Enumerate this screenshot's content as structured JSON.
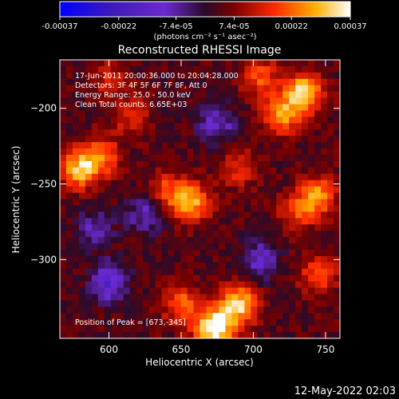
{
  "chart_data": {
    "type": "heatmap",
    "title": "Reconstructed RHESSI Image",
    "xlabel": "Heliocentric X (arcsec)",
    "ylabel": "Heliocentric Y (arcsec)",
    "xlim": [
      566,
      760
    ],
    "ylim": [
      -352,
      -168
    ],
    "x_ticks": [
      "600",
      "650",
      "700",
      "750"
    ],
    "y_ticks": [
      "-200",
      "-250",
      "-300"
    ],
    "x_tick_values": [
      600,
      650,
      700,
      750
    ],
    "y_tick_values": [
      -200,
      -250,
      -300
    ],
    "colorbar": {
      "min": -0.00037,
      "max": 0.00037,
      "ticks": [
        "-0.00037",
        "-0.00022",
        "-7.4e-05",
        "7.4e-05",
        "0.00022",
        "0.00037"
      ],
      "tick_values": [
        -0.00037,
        -0.00022,
        -7.4e-05,
        7.4e-05,
        0.00022,
        0.00037
      ],
      "unit_label": "(photons cm⁻² s⁻¹ asec⁻²)"
    },
    "annotations": [
      "17-Jun-2011 20:00:36.000 to 20:04:28.000",
      "Detectors: 3F 4F 5F 6F 7F 8F, Att 0",
      "Energy Range: 25.0 - 50.0 keV",
      "Clean     Total counts: 6.65E+03"
    ],
    "peak_label": "Position of Peak = [673,-345]",
    "peak": [
      673,
      -345
    ],
    "hotspots": [
      {
        "x": 673,
        "y": -345,
        "value": 0.00037
      },
      {
        "x": 690,
        "y": -330,
        "value": 0.00028
      },
      {
        "x": 650,
        "y": -330,
        "value": 0.00018
      },
      {
        "x": 735,
        "y": -190,
        "value": 0.0003
      },
      {
        "x": 720,
        "y": -205,
        "value": 0.00022
      },
      {
        "x": 705,
        "y": -180,
        "value": 0.00016
      },
      {
        "x": 580,
        "y": -240,
        "value": 0.00026
      },
      {
        "x": 595,
        "y": -232,
        "value": 0.00018
      },
      {
        "x": 657,
        "y": -262,
        "value": 0.00024
      },
      {
        "x": 640,
        "y": -255,
        "value": 0.00015
      },
      {
        "x": 745,
        "y": -258,
        "value": 0.00022
      },
      {
        "x": 730,
        "y": -268,
        "value": 0.00014
      },
      {
        "x": 745,
        "y": -310,
        "value": 0.00017
      },
      {
        "x": 615,
        "y": -205,
        "value": 0.00012
      },
      {
        "x": 600,
        "y": -180,
        "value": 0.0001
      },
      {
        "x": 690,
        "y": -240,
        "value": 0.00012
      }
    ],
    "coldspots": [
      {
        "x": 600,
        "y": -315,
        "value": -0.0002
      },
      {
        "x": 625,
        "y": -270,
        "value": -0.00014
      },
      {
        "x": 675,
        "y": -210,
        "value": -0.00015
      },
      {
        "x": 705,
        "y": -300,
        "value": -0.00016
      },
      {
        "x": 590,
        "y": -280,
        "value": -0.00012
      }
    ]
  },
  "footer": {
    "date": "12-May-2022 02:03"
  }
}
